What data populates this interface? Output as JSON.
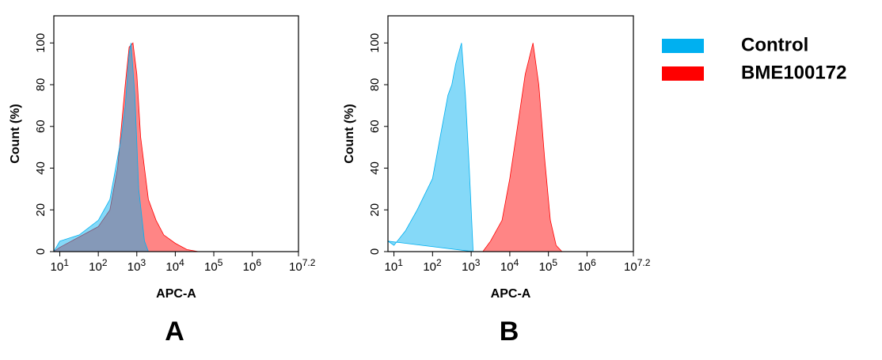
{
  "chart_data": [
    {
      "type": "area",
      "panel_label": "A",
      "x_label": "APC-A",
      "y_label": "Count  (%)",
      "xscale": "log",
      "xlim": [
        7,
        15848932
      ],
      "ylim": [
        0,
        113
      ],
      "xticks": [
        {
          "value": 10,
          "label": "10",
          "exponent": "1"
        },
        {
          "value": 100,
          "label": "10",
          "exponent": "2"
        },
        {
          "value": 1000,
          "label": "10",
          "exponent": "3"
        },
        {
          "value": 10000,
          "label": "10",
          "exponent": "4"
        },
        {
          "value": 100000,
          "label": "10",
          "exponent": "5"
        },
        {
          "value": 1000000,
          "label": "10",
          "exponent": "6"
        },
        {
          "value": 15848932,
          "label": "10",
          "exponent": "7.2"
        }
      ],
      "yticks": [
        0,
        20,
        40,
        60,
        80,
        100
      ],
      "series": [
        {
          "color": "#ff0000",
          "x": [
            7,
            10,
            100,
            200,
            316,
            501,
            631,
            794,
            1000,
            1259,
            1995,
            3162,
            5012,
            10000,
            19953,
            39811
          ],
          "values": [
            0,
            2,
            12,
            20,
            40,
            80,
            98,
            100,
            85,
            55,
            25,
            15,
            8,
            4,
            1,
            0
          ]
        },
        {
          "color": "#00b0f0",
          "x": [
            7,
            10,
            32,
            100,
            200,
            316,
            398,
            501,
            631,
            708,
            891,
            1122,
            1585,
            1995
          ],
          "values": [
            0,
            5,
            8,
            15,
            25,
            45,
            55,
            70,
            95,
            100,
            75,
            30,
            5,
            0
          ]
        }
      ]
    },
    {
      "type": "area",
      "panel_label": "B",
      "x_label": "APC-A",
      "y_label": "Count  (%)",
      "xscale": "log",
      "xlim": [
        7,
        15848932
      ],
      "ylim": [
        0,
        113
      ],
      "xticks": [
        {
          "value": 10,
          "label": "10",
          "exponent": "1"
        },
        {
          "value": 100,
          "label": "10",
          "exponent": "2"
        },
        {
          "value": 1000,
          "label": "10",
          "exponent": "3"
        },
        {
          "value": 10000,
          "label": "10",
          "exponent": "4"
        },
        {
          "value": 100000,
          "label": "10",
          "exponent": "5"
        },
        {
          "value": 1000000,
          "label": "10",
          "exponent": "6"
        },
        {
          "value": 15848932,
          "label": "10",
          "exponent": "7.2"
        }
      ],
      "yticks": [
        0,
        20,
        40,
        60,
        80,
        100
      ],
      "series": [
        {
          "color": "#00b0f0",
          "x": [
            7,
            10,
            20,
            40,
            100,
            158,
            251,
            316,
            398,
            562,
            708,
            891,
            1122
          ],
          "values": [
            5,
            3,
            10,
            20,
            35,
            55,
            75,
            80,
            90,
            100,
            75,
            40,
            0
          ]
        },
        {
          "color": "#ff0000",
          "x": [
            1995,
            3162,
            6310,
            10000,
            15849,
            25119,
            39811,
            56234,
            79433,
            112202,
            158489,
            223872
          ],
          "values": [
            0,
            5,
            15,
            35,
            60,
            85,
            100,
            80,
            45,
            15,
            3,
            0
          ]
        }
      ]
    }
  ],
  "legend": [
    {
      "name": "Control",
      "color": "#00b0f0"
    },
    {
      "name": "BME100172",
      "color": "#ff0000"
    }
  ]
}
